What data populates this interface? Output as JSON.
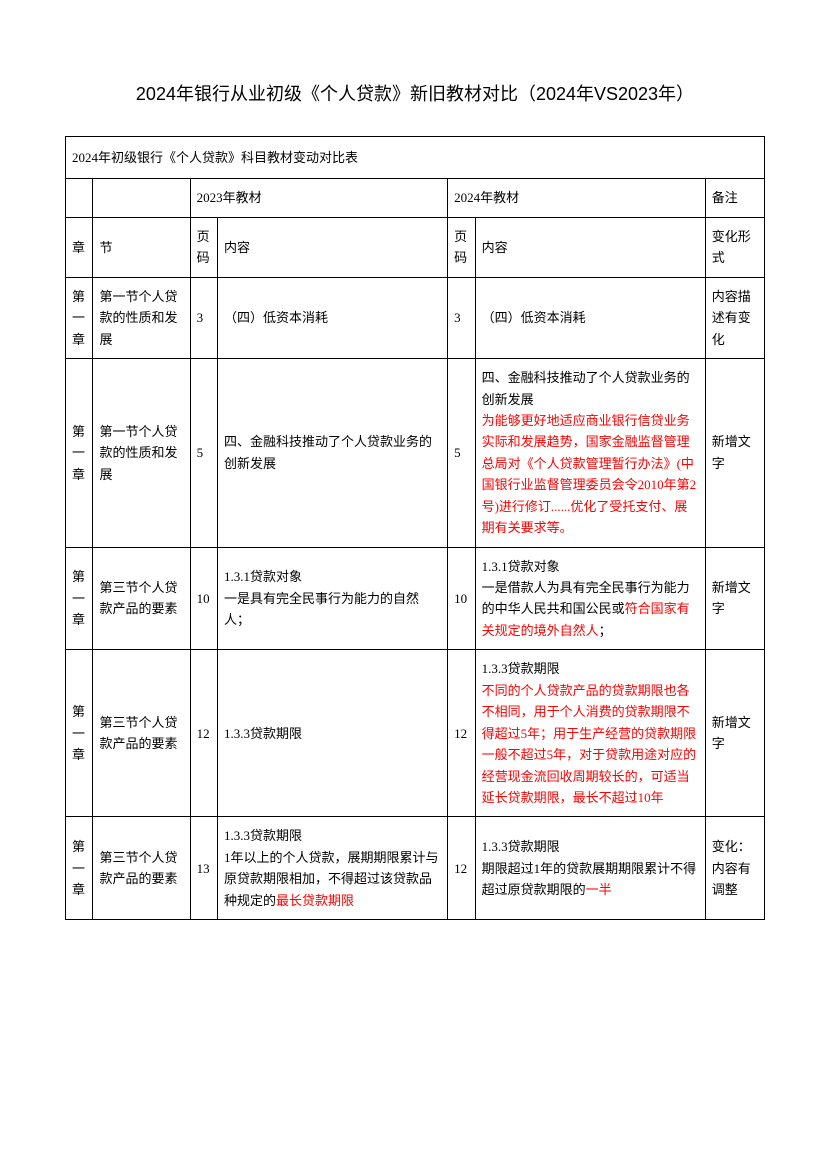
{
  "title": "2024年银行从业初级《个人贷款》新旧教材对比（2024年VS2023年）",
  "caption": "2024年初级银行《个人贷款》科目教材变动对比表",
  "headers": {
    "year2023": "2023年教材",
    "year2024": "2024年教材",
    "note": "备注",
    "chapter": "章",
    "section": "节",
    "page": "页码",
    "content": "内容",
    "changeType": "变化形式"
  },
  "rows": [
    {
      "chapter": "第一章",
      "section": "第一节个人贷款的性质和发展",
      "page2023": "3",
      "content2023_plain": "（四）低资本消耗",
      "page2024": "3",
      "content2024_plain": "（四）低资本消耗",
      "note": "内容描述有变化"
    },
    {
      "chapter": "第一章",
      "section": "第一节个人贷款的性质和发展",
      "page2023": "5",
      "content2023_plain": "四、金融科技推动了个人贷款业务的创新发展",
      "page2024": "5",
      "content2024_black": "四、金融科技推动了个人贷款业务的创新发展",
      "content2024_red": "为能够更好地适应商业银行信贷业务实际和发展趋势，国家金融监督管理总局对《个人贷款管理暂行办法》(中国银行业监督管理委员会令2010年第2号)进行修订......优化了受托支付、展期有关要求等。",
      "note": "新增文字"
    },
    {
      "chapter": "第一章",
      "section": "第三节个人贷款产品的要素",
      "page2023": "10",
      "content2023_plain": "1.3.1贷款对象\n一是具有完全民事行为能力的自然人；",
      "page2024": "10",
      "content2024_black": "1.3.1贷款对象\n一是借款人为具有完全民事行为能力的中华人民共和国公民或",
      "content2024_red": "符合国家有关规定的境外自然人",
      "content2024_tail": "；",
      "note": "新增文字"
    },
    {
      "chapter": "第一章",
      "section": "第三节个人贷款产品的要素",
      "page2023": "12",
      "content2023_plain": "1.3.3贷款期限",
      "page2024": "12",
      "content2024_black": "1.3.3贷款期限",
      "content2024_red": "不同的个人贷款产品的贷款期限也各不相同，用于个人消费的贷款期限不得超过5年；用于生产经营的贷款期限一般不超过5年，对于贷款用途对应的经营现金流回收周期较长的，可适当延长贷款期限，最长不超过10年",
      "note": "新增文字"
    },
    {
      "chapter": "第一章",
      "section": "第三节个人贷款产品的要素",
      "page2023": "13",
      "content2023_black": "1.3.3贷款期限\n1年以上的个人贷款，展期期限累计与原贷款期限相加，不得超过该贷款品种规定的",
      "content2023_red": "最长贷款期限",
      "page2024": "12",
      "content2024_black": "1.3.3贷款期限\n期限超过1年的贷款展期期限累计不得超过原贷款期限的",
      "content2024_red": "一半",
      "note": "变化：内容有调整"
    }
  ]
}
